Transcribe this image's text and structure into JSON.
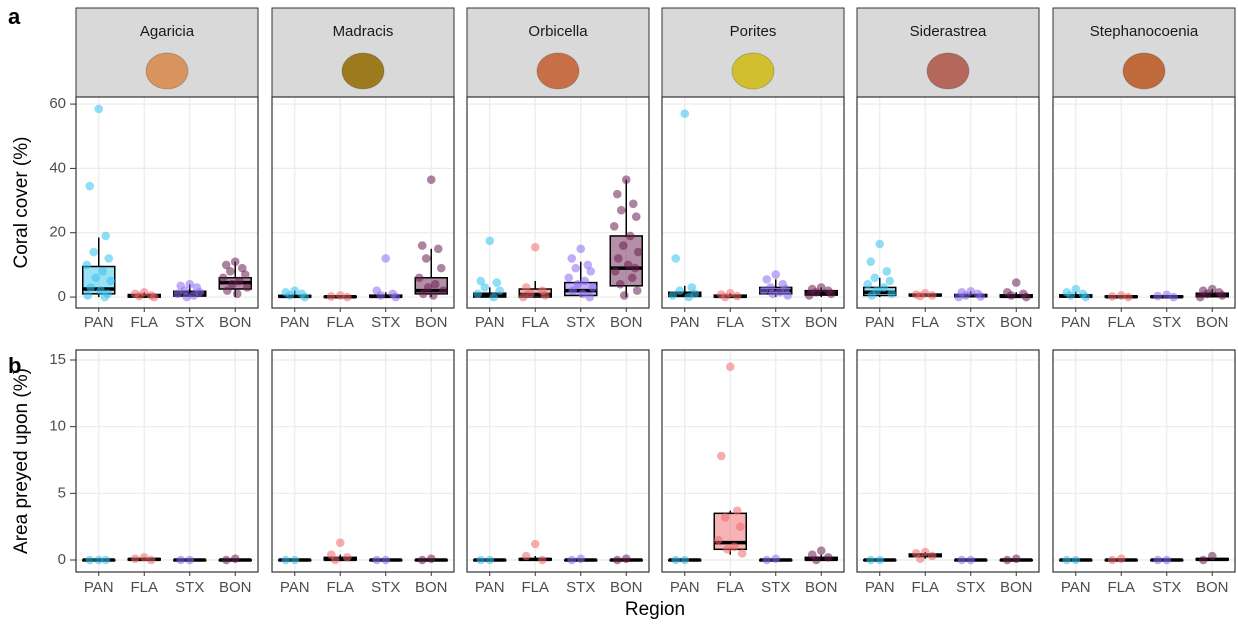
{
  "chart_data": [
    {
      "type": "boxplot",
      "panel_label": "a",
      "y_label": "Coral cover (%)",
      "categories": [
        "PAN",
        "FLA",
        "STX",
        "BON"
      ],
      "colors": [
        "#35c3ee",
        "#f0686a",
        "#8a6cf0",
        "#6a1f50"
      ],
      "ylim": [
        -3.4,
        62.2
      ],
      "yticks": [
        0,
        20,
        40,
        60
      ],
      "grid": true,
      "facets": [
        {
          "name": "Agaricia",
          "boxes": [
            {
              "q1": 1,
              "median": 2.5,
              "q3": 9.5,
              "low": 0,
              "high": 18.5,
              "points": [
                58.5,
                34.5,
                19,
                14,
                12,
                10,
                8,
                6,
                5,
                3,
                2,
                1,
                0.5,
                0
              ]
            },
            {
              "q1": 0,
              "median": 0.3,
              "q3": 0.8,
              "low": 0,
              "high": 1.5,
              "points": [
                1.5,
                1,
                0.5,
                0.3,
                0
              ]
            },
            {
              "q1": 0.3,
              "median": 1,
              "q3": 1.8,
              "low": 0,
              "high": 4,
              "points": [
                4,
                3.5,
                3,
                2,
                1.5,
                1,
                0.5,
                0
              ]
            },
            {
              "q1": 2.5,
              "median": 4.5,
              "q3": 6,
              "low": 0,
              "high": 11,
              "points": [
                11,
                10,
                9,
                8,
                7,
                6,
                5,
                4,
                3,
                2,
                1
              ]
            }
          ]
        },
        {
          "name": "Madracis",
          "boxes": [
            {
              "q1": 0,
              "median": 0.2,
              "q3": 0.5,
              "low": 0,
              "high": 2,
              "points": [
                2,
                1.5,
                1,
                0.5,
                0
              ]
            },
            {
              "q1": 0,
              "median": 0.1,
              "q3": 0.2,
              "low": 0,
              "high": 0.5,
              "points": [
                0.5,
                0.2,
                0
              ]
            },
            {
              "q1": 0,
              "median": 0.2,
              "q3": 0.6,
              "low": 0,
              "high": 1.5,
              "points": [
                12,
                2,
                1,
                0.5,
                0
              ]
            },
            {
              "q1": 1,
              "median": 2,
              "q3": 6,
              "low": 0,
              "high": 15,
              "points": [
                36.5,
                16,
                15,
                12,
                9,
                6,
                4,
                3,
                2,
                1,
                0.5
              ]
            }
          ]
        },
        {
          "name": "Orbicella",
          "boxes": [
            {
              "q1": 0,
              "median": 0.5,
              "q3": 1.2,
              "low": 0,
              "high": 3,
              "points": [
                17.5,
                5,
                4.5,
                3,
                2,
                1,
                0
              ]
            },
            {
              "q1": 0,
              "median": 0.8,
              "q3": 2.5,
              "low": 0,
              "high": 5,
              "points": [
                15.5,
                3,
                2,
                1,
                0.5,
                0
              ]
            },
            {
              "q1": 0.5,
              "median": 2,
              "q3": 4.5,
              "low": 0,
              "high": 11,
              "points": [
                15,
                12,
                10,
                9,
                8,
                6,
                5,
                4,
                3,
                2,
                1,
                0
              ]
            },
            {
              "q1": 3.5,
              "median": 9,
              "q3": 19,
              "low": 0,
              "high": 36.5,
              "points": [
                36.5,
                32,
                29,
                27,
                25,
                22,
                19,
                16,
                14,
                12,
                10,
                9,
                8,
                6,
                4,
                2,
                0.5
              ]
            }
          ]
        },
        {
          "name": "Porites",
          "boxes": [
            {
              "q1": 0.2,
              "median": 0.8,
              "q3": 1.5,
              "low": 0,
              "high": 3.5,
              "points": [
                57,
                12,
                3,
                2,
                1,
                0.5,
                0
              ]
            },
            {
              "q1": 0,
              "median": 0.2,
              "q3": 0.6,
              "low": 0,
              "high": 1.2,
              "points": [
                1.2,
                0.8,
                0.3,
                0
              ]
            },
            {
              "q1": 1,
              "median": 2,
              "q3": 3,
              "low": 0,
              "high": 5.5,
              "points": [
                7,
                5.5,
                4,
                3,
                2.5,
                2,
                1.5,
                1,
                0.5
              ]
            },
            {
              "q1": 0.6,
              "median": 1.2,
              "q3": 2,
              "low": 0,
              "high": 3,
              "points": [
                3,
                2.5,
                2,
                1.5,
                1,
                0.5
              ]
            }
          ]
        },
        {
          "name": "Siderastrea",
          "boxes": [
            {
              "q1": 0.5,
              "median": 1.5,
              "q3": 3,
              "low": 0,
              "high": 6,
              "points": [
                16.5,
                11,
                8,
                6,
                5,
                4,
                3,
                2,
                1,
                0.5
              ]
            },
            {
              "q1": 0.4,
              "median": 0.6,
              "q3": 0.9,
              "low": 0.2,
              "high": 1.2,
              "points": [
                1.2,
                0.8,
                0.5,
                0.3
              ]
            },
            {
              "q1": 0.1,
              "median": 0.4,
              "q3": 0.8,
              "low": 0,
              "high": 1.8,
              "points": [
                1.8,
                1.5,
                1,
                0.5,
                0.2,
                0
              ]
            },
            {
              "q1": 0,
              "median": 0.2,
              "q3": 0.7,
              "low": 0,
              "high": 1.5,
              "points": [
                4.5,
                1.5,
                1,
                0.5,
                0
              ]
            }
          ]
        },
        {
          "name": "Stephanocoenia",
          "boxes": [
            {
              "q1": 0,
              "median": 0.3,
              "q3": 0.7,
              "low": 0,
              "high": 1.7,
              "points": [
                2.5,
                1.5,
                1,
                0.5,
                0
              ]
            },
            {
              "q1": 0,
              "median": 0.1,
              "q3": 0.3,
              "low": 0,
              "high": 0.6,
              "points": [
                0.5,
                0.2,
                0
              ]
            },
            {
              "q1": 0,
              "median": 0.1,
              "q3": 0.3,
              "low": 0,
              "high": 0.7,
              "points": [
                0.7,
                0.3,
                0
              ]
            },
            {
              "q1": 0.1,
              "median": 0.5,
              "q3": 1.2,
              "low": 0,
              "high": 2.5,
              "points": [
                2.5,
                2,
                1.5,
                1,
                0.5,
                0
              ]
            }
          ]
        }
      ]
    },
    {
      "type": "boxplot",
      "panel_label": "b",
      "y_label": "Area preyed upon (%)",
      "x_label": "Region",
      "categories": [
        "PAN",
        "FLA",
        "STX",
        "BON"
      ],
      "colors": [
        "#35c3ee",
        "#f0686a",
        "#8a6cf0",
        "#6a1f50"
      ],
      "ylim": [
        -0.9,
        15.75
      ],
      "yticks": [
        0,
        5,
        10,
        15
      ],
      "grid": true,
      "facets": [
        {
          "boxes": [
            {
              "q1": 0,
              "median": 0,
              "q3": 0,
              "low": 0,
              "high": 0,
              "points": [
                0,
                0,
                0
              ]
            },
            {
              "q1": 0,
              "median": 0.05,
              "q3": 0.1,
              "low": 0,
              "high": 0.2,
              "points": [
                0.2,
                0.1,
                0
              ]
            },
            {
              "q1": 0,
              "median": 0,
              "q3": 0,
              "low": 0,
              "high": 0,
              "points": [
                0,
                0
              ]
            },
            {
              "q1": 0,
              "median": 0,
              "q3": 0,
              "low": 0,
              "high": 0,
              "points": [
                0.1,
                0
              ]
            }
          ]
        },
        {
          "boxes": [
            {
              "q1": 0,
              "median": 0,
              "q3": 0,
              "low": 0,
              "high": 0,
              "points": [
                0,
                0
              ]
            },
            {
              "q1": 0,
              "median": 0.05,
              "q3": 0.2,
              "low": 0,
              "high": 0.4,
              "points": [
                1.3,
                0.4,
                0.2,
                0
              ]
            },
            {
              "q1": 0,
              "median": 0,
              "q3": 0,
              "low": 0,
              "high": 0,
              "points": [
                0,
                0
              ]
            },
            {
              "q1": 0,
              "median": 0,
              "q3": 0,
              "low": 0,
              "high": 0,
              "points": [
                0.1,
                0
              ]
            }
          ]
        },
        {
          "boxes": [
            {
              "q1": 0,
              "median": 0,
              "q3": 0,
              "low": 0,
              "high": 0,
              "points": [
                0,
                0
              ]
            },
            {
              "q1": 0,
              "median": 0.05,
              "q3": 0.1,
              "low": 0,
              "high": 0.3,
              "points": [
                1.2,
                0.3,
                0
              ]
            },
            {
              "q1": 0,
              "median": 0,
              "q3": 0,
              "low": 0,
              "high": 0,
              "points": [
                0.1,
                0
              ]
            },
            {
              "q1": 0,
              "median": 0,
              "q3": 0,
              "low": 0,
              "high": 0,
              "points": [
                0.1,
                0
              ]
            }
          ]
        },
        {
          "boxes": [
            {
              "q1": 0,
              "median": 0,
              "q3": 0,
              "low": 0,
              "high": 0,
              "points": [
                0,
                0
              ]
            },
            {
              "q1": 0.8,
              "median": 1.3,
              "q3": 3.5,
              "low": 0.4,
              "high": 3.7,
              "points": [
                14.5,
                7.8,
                3.7,
                3.2,
                2.5,
                1.5,
                1,
                0.8,
                0.5
              ]
            },
            {
              "q1": 0,
              "median": 0,
              "q3": 0,
              "low": 0,
              "high": 0,
              "points": [
                0.1,
                0
              ]
            },
            {
              "q1": 0,
              "median": 0.05,
              "q3": 0.2,
              "low": 0,
              "high": 0.4,
              "points": [
                0.7,
                0.4,
                0.2,
                0
              ]
            }
          ]
        },
        {
          "boxes": [
            {
              "q1": 0,
              "median": 0,
              "q3": 0,
              "low": 0,
              "high": 0,
              "points": [
                0,
                0
              ]
            },
            {
              "q1": 0.25,
              "median": 0.35,
              "q3": 0.45,
              "low": 0.1,
              "high": 0.6,
              "points": [
                0.6,
                0.5,
                0.3,
                0.1
              ]
            },
            {
              "q1": 0,
              "median": 0,
              "q3": 0,
              "low": 0,
              "high": 0,
              "points": [
                0,
                0
              ]
            },
            {
              "q1": 0,
              "median": 0,
              "q3": 0,
              "low": 0,
              "high": 0,
              "points": [
                0.1,
                0
              ]
            }
          ]
        },
        {
          "boxes": [
            {
              "q1": 0,
              "median": 0,
              "q3": 0,
              "low": 0,
              "high": 0,
              "points": [
                0,
                0
              ]
            },
            {
              "q1": 0,
              "median": 0,
              "q3": 0,
              "low": 0,
              "high": 0,
              "points": [
                0.1,
                0
              ]
            },
            {
              "q1": 0,
              "median": 0,
              "q3": 0,
              "low": 0,
              "high": 0,
              "points": [
                0,
                0
              ]
            },
            {
              "q1": 0,
              "median": 0.05,
              "q3": 0.1,
              "low": 0,
              "high": 0.1,
              "points": [
                0.3,
                0
              ]
            }
          ]
        }
      ]
    }
  ]
}
